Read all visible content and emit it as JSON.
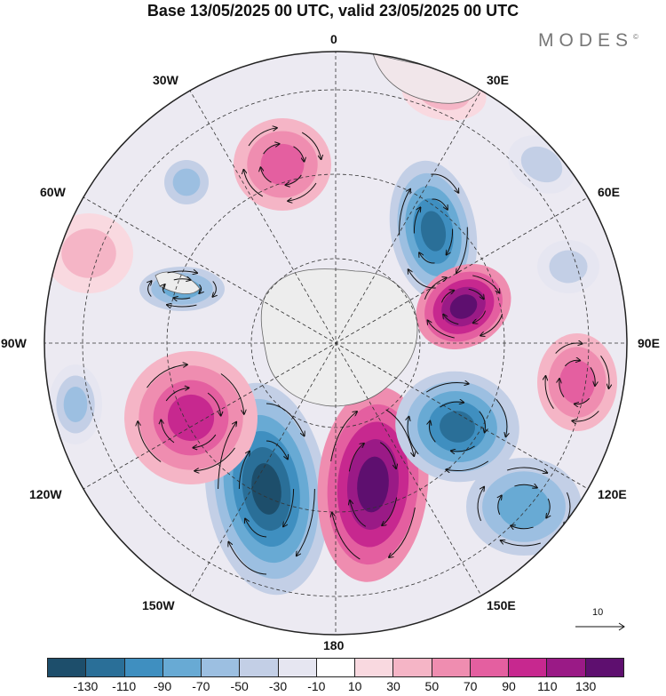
{
  "title": "Base 13/05/2025 00 UTC, valid 23/05/2025 00 UTC",
  "brand": "MODES",
  "brand_mark": "©",
  "longitude_labels": {
    "lon_0": "0",
    "lon_30e": "30E",
    "lon_60e": "60E",
    "lon_90e": "90E",
    "lon_120e": "120E",
    "lon_150e": "150E",
    "lon_180": "180",
    "lon_150w": "150W",
    "lon_120w": "120W",
    "lon_90w": "90W",
    "lon_60w": "60W",
    "lon_30w": "30W"
  },
  "reference_vector": {
    "label": "10"
  },
  "colorbar": {
    "colors": [
      "#1d4e6b",
      "#2a6f98",
      "#3f8fc0",
      "#68aad4",
      "#9cbfe1",
      "#c3cfe6",
      "#e6e6f1",
      "#ffffff",
      "#f9d9e0",
      "#f5b5c6",
      "#ef8db0",
      "#e45fa0",
      "#c7288f",
      "#9a1a86",
      "#5e0f6f"
    ],
    "tick_labels": [
      "-130",
      "-110",
      "-90",
      "-70",
      "-50",
      "-30",
      "-10",
      "10",
      "30",
      "50",
      "70",
      "90",
      "110",
      "130"
    ]
  },
  "map": {
    "projection": "south polar stereographic",
    "highlight_colors": {
      "land": "#eeeeee",
      "graticule": "#333333"
    }
  }
}
